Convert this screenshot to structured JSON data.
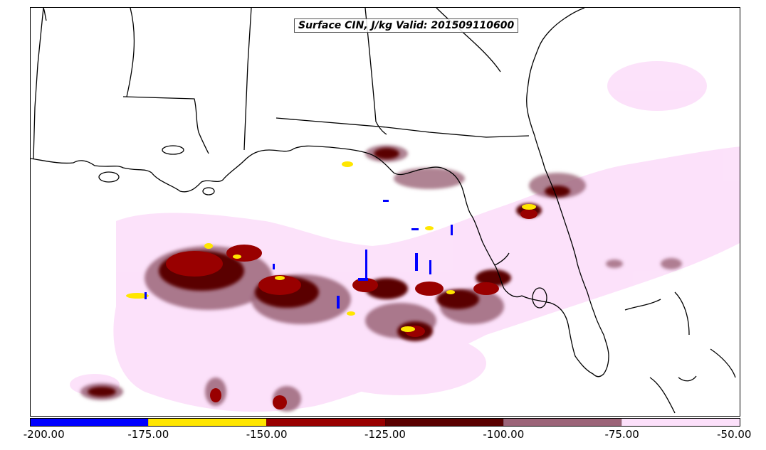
{
  "title": "Surface CIN, J/kg Valid: 201509110600",
  "colorbar": {
    "min": -200,
    "max": -50,
    "segments": [
      {
        "from": -200,
        "to": -175,
        "color": "#0000ff"
      },
      {
        "from": -175,
        "to": -150,
        "color": "#ffe600"
      },
      {
        "from": -150,
        "to": -125,
        "color": "#990000"
      },
      {
        "from": -125,
        "to": -100,
        "color": "#5a0000"
      },
      {
        "from": -100,
        "to": -75,
        "color": "#9b6478"
      },
      {
        "from": -75,
        "to": -50,
        "color": "#fce0fa"
      }
    ],
    "tick_labels": [
      "-200.00",
      "-175.00",
      "-150.00",
      "-125.00",
      "-100.00",
      "-75.00",
      "-50.00"
    ]
  },
  "map": {
    "region": "U.S. Gulf Coast and Gulf of Mexico",
    "colors": {
      "land_lines": "#000000",
      "background": "#ffffff"
    }
  }
}
